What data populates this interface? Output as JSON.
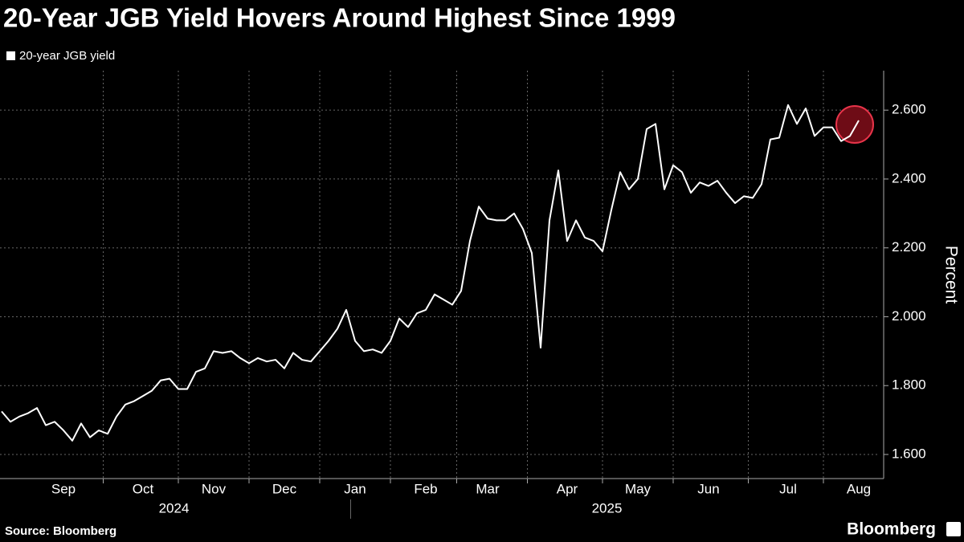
{
  "chart_data": {
    "type": "line",
    "title": "20-Year JGB Yield Hovers Around Highest Since 1999",
    "y_label": "Percent",
    "source": "Source: Bloomberg",
    "brand": "Bloomberg",
    "year_labels": [
      "2024",
      "2025"
    ],
    "categories": [
      null,
      null,
      null,
      null,
      null,
      null,
      null,
      "Sep",
      null,
      null,
      null,
      null,
      null,
      null,
      null,
      null,
      "Oct",
      null,
      null,
      null,
      null,
      null,
      null,
      null,
      "Nov",
      null,
      null,
      null,
      null,
      null,
      null,
      null,
      "Dec",
      null,
      null,
      null,
      null,
      null,
      null,
      null,
      "Jan",
      null,
      null,
      null,
      null,
      null,
      null,
      null,
      "Feb",
      null,
      null,
      null,
      null,
      null,
      null,
      "Mar",
      null,
      null,
      null,
      null,
      null,
      null,
      null,
      null,
      "Apr",
      null,
      null,
      null,
      null,
      null,
      null,
      null,
      "May",
      null,
      null,
      null,
      null,
      null,
      null,
      null,
      "Jun",
      null,
      null,
      null,
      null,
      null,
      null,
      null,
      null,
      "Jul",
      null,
      null,
      null,
      null,
      null,
      null,
      null,
      "Aug"
    ],
    "series": [
      {
        "name": "20-year JGB yield",
        "color": "#ffffff",
        "values": [
          1.725,
          1.695,
          1.71,
          1.72,
          1.735,
          1.685,
          1.695,
          1.67,
          1.64,
          1.69,
          1.65,
          1.67,
          1.66,
          1.71,
          1.745,
          1.755,
          1.77,
          1.785,
          1.815,
          1.82,
          1.79,
          1.79,
          1.84,
          1.85,
          1.9,
          1.895,
          1.9,
          1.88,
          1.865,
          1.88,
          1.87,
          1.875,
          1.85,
          1.895,
          1.875,
          1.87,
          1.9,
          1.93,
          1.965,
          2.02,
          1.93,
          1.9,
          1.905,
          1.895,
          1.93,
          1.995,
          1.97,
          2.01,
          2.02,
          2.065,
          2.05,
          2.035,
          2.075,
          2.22,
          2.32,
          2.285,
          2.28,
          2.28,
          2.3,
          2.255,
          2.185,
          1.91,
          2.28,
          2.425,
          2.22,
          2.28,
          2.23,
          2.22,
          2.19,
          2.31,
          2.42,
          2.37,
          2.4,
          2.545,
          2.56,
          2.37,
          2.44,
          2.42,
          2.36,
          2.39,
          2.38,
          2.395,
          2.36,
          2.33,
          2.35,
          2.345,
          2.385,
          2.515,
          2.52,
          2.615,
          2.56,
          2.605,
          2.525,
          2.55,
          2.55,
          2.51,
          2.525,
          2.57
        ]
      }
    ],
    "ylim": [
      1.53,
      2.71
    ],
    "yticks": [
      {
        "value": 1.6,
        "label": "1.600"
      },
      {
        "value": 1.8,
        "label": "1.800"
      },
      {
        "value": 2.0,
        "label": "2.000"
      },
      {
        "value": 2.2,
        "label": "2.200"
      },
      {
        "value": 2.4,
        "label": "2.400"
      },
      {
        "value": 2.6,
        "label": "2.600"
      }
    ],
    "grid": true,
    "highlight_last": true
  }
}
